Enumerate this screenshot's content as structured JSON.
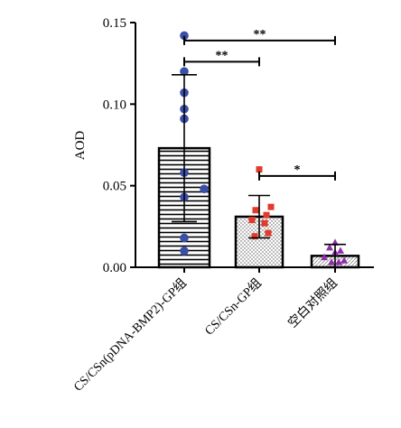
{
  "chart_data": {
    "type": "bar",
    "title": "",
    "xlabel": "",
    "ylabel": "AOD",
    "ylim": [
      0,
      0.15
    ],
    "yticks": [
      "0.00",
      "0.05",
      "0.10",
      "0.15"
    ],
    "ytick_values": [
      0,
      0.05,
      0.1,
      0.15
    ],
    "grid": false,
    "categories": [
      "CS/CSn(pDNA-BMP2)-GP组",
      "CS/CSn-GP组",
      "空白对照组"
    ],
    "values": [
      0.073,
      0.031,
      0.007
    ],
    "error": [
      0.045,
      0.013,
      0.007
    ],
    "bar_patterns": [
      "horizontal-lines",
      "dots",
      "diagonal-lines"
    ],
    "point_colors": [
      "#3a4fa6",
      "#e23b2e",
      "#8e2fa8"
    ],
    "point_markers": [
      "circle",
      "square",
      "triangle"
    ],
    "points": [
      [
        0.142,
        0.12,
        0.107,
        0.097,
        0.091,
        0.058,
        0.048,
        0.043,
        0.018,
        0.01
      ],
      [
        0.06,
        0.037,
        0.035,
        0.032,
        0.029,
        0.027,
        0.021,
        0.019
      ],
      [
        0.015,
        0.012,
        0.01,
        0.009,
        0.006,
        0.004,
        0.003,
        0.003
      ]
    ],
    "significance": [
      {
        "from": 0,
        "to": 2,
        "y": 0.139,
        "label": "**"
      },
      {
        "from": 0,
        "to": 1,
        "y": 0.126,
        "label": "**"
      },
      {
        "from": 1,
        "to": 2,
        "y": 0.056,
        "label": "*"
      }
    ]
  }
}
